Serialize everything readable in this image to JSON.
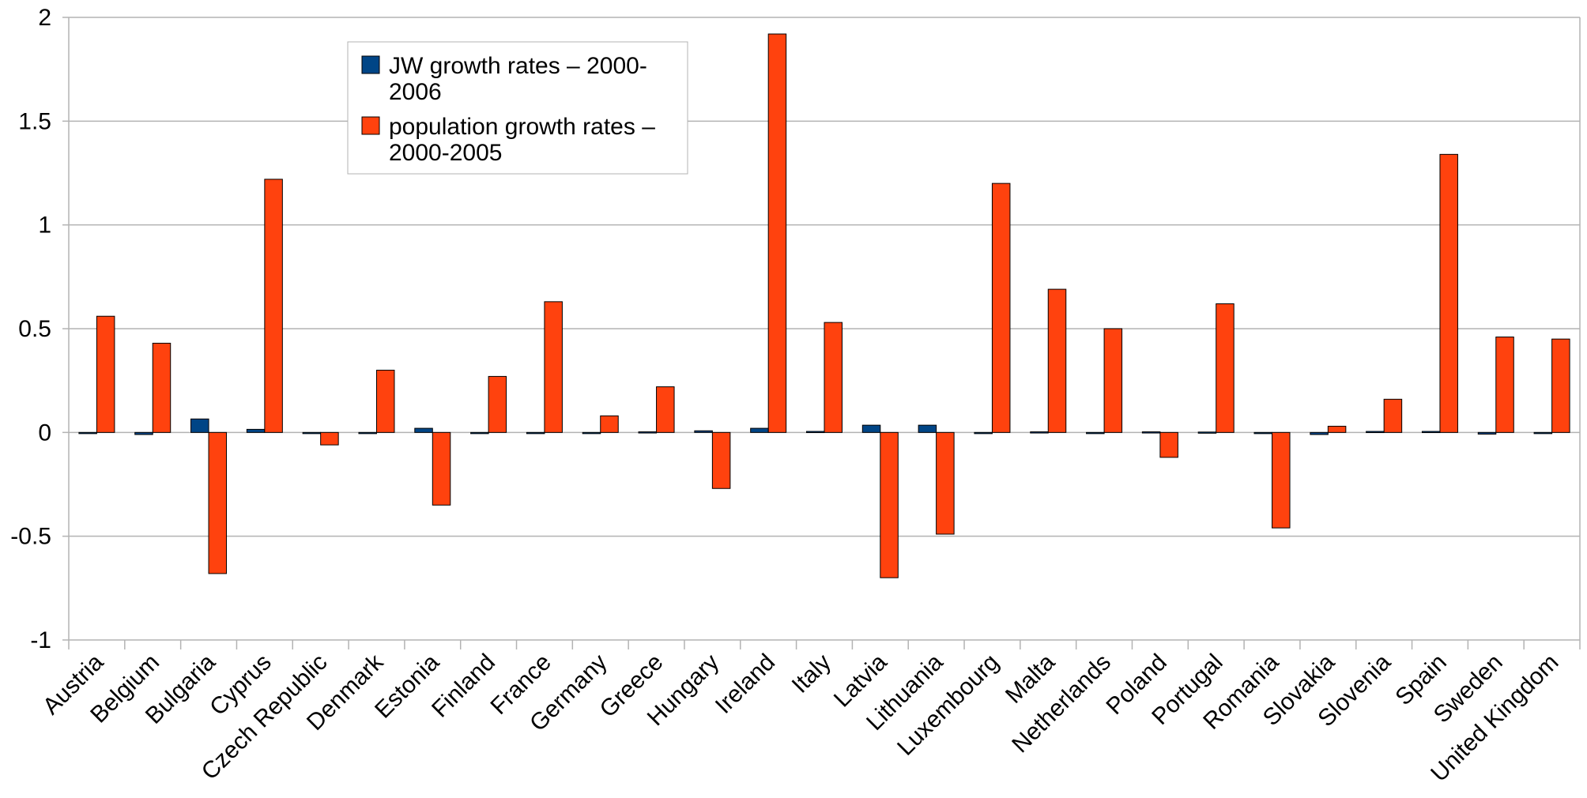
{
  "chart_data": {
    "type": "bar",
    "categories": [
      "Austria",
      "Belgium",
      "Bulgaria",
      "Cyprus",
      "Czech Republic",
      "Denmark",
      "Estonia",
      "Finland",
      "France",
      "Germany",
      "Greece",
      "Hungary",
      "Ireland",
      "Italy",
      "Latvia",
      "Lithuania",
      "Luxembourg",
      "Malta",
      "Netherlands",
      "Poland",
      "Portugal",
      "Romania",
      "Slovakia",
      "Slovenia",
      "Spain",
      "Sweden",
      "United Kingdom"
    ],
    "series": [
      {
        "name": "JW growth rates – 2000-2006",
        "name_lines": [
          "JW growth rates – 2000-",
          "2006"
        ],
        "color": "#004586",
        "values": [
          0,
          -0.01,
          0.065,
          0.015,
          -0.005,
          -0.005,
          0.02,
          -0.005,
          0,
          -0.003,
          0.003,
          0.008,
          0.02,
          0.005,
          0.035,
          0.035,
          -0.005,
          0.003,
          0,
          0.003,
          0.002,
          0,
          -0.01,
          0.005,
          0.005,
          -0.008,
          0
        ]
      },
      {
        "name": "population growth rates – 2000-2005",
        "name_lines": [
          "population growth rates –",
          "2000-2005"
        ],
        "color": "#ff420e",
        "values": [
          0.56,
          0.43,
          -0.68,
          1.22,
          -0.06,
          0.3,
          -0.35,
          0.27,
          0.63,
          0.08,
          0.22,
          -0.27,
          1.92,
          0.53,
          -0.7,
          -0.49,
          1.2,
          0.69,
          0.5,
          -0.12,
          0.62,
          -0.46,
          0.03,
          0.16,
          1.34,
          0.46,
          0.45
        ]
      }
    ],
    "ylim": [
      -1,
      2
    ],
    "yticks": [
      -1,
      -0.5,
      0,
      0.5,
      1,
      1.5,
      2
    ],
    "ytick_labels": [
      "-1",
      "-0.5",
      "0",
      "0.5",
      "1",
      "1.5",
      "2"
    ],
    "title": "",
    "xlabel": "",
    "ylabel": "",
    "grid": true,
    "legend_position": "top-left"
  }
}
